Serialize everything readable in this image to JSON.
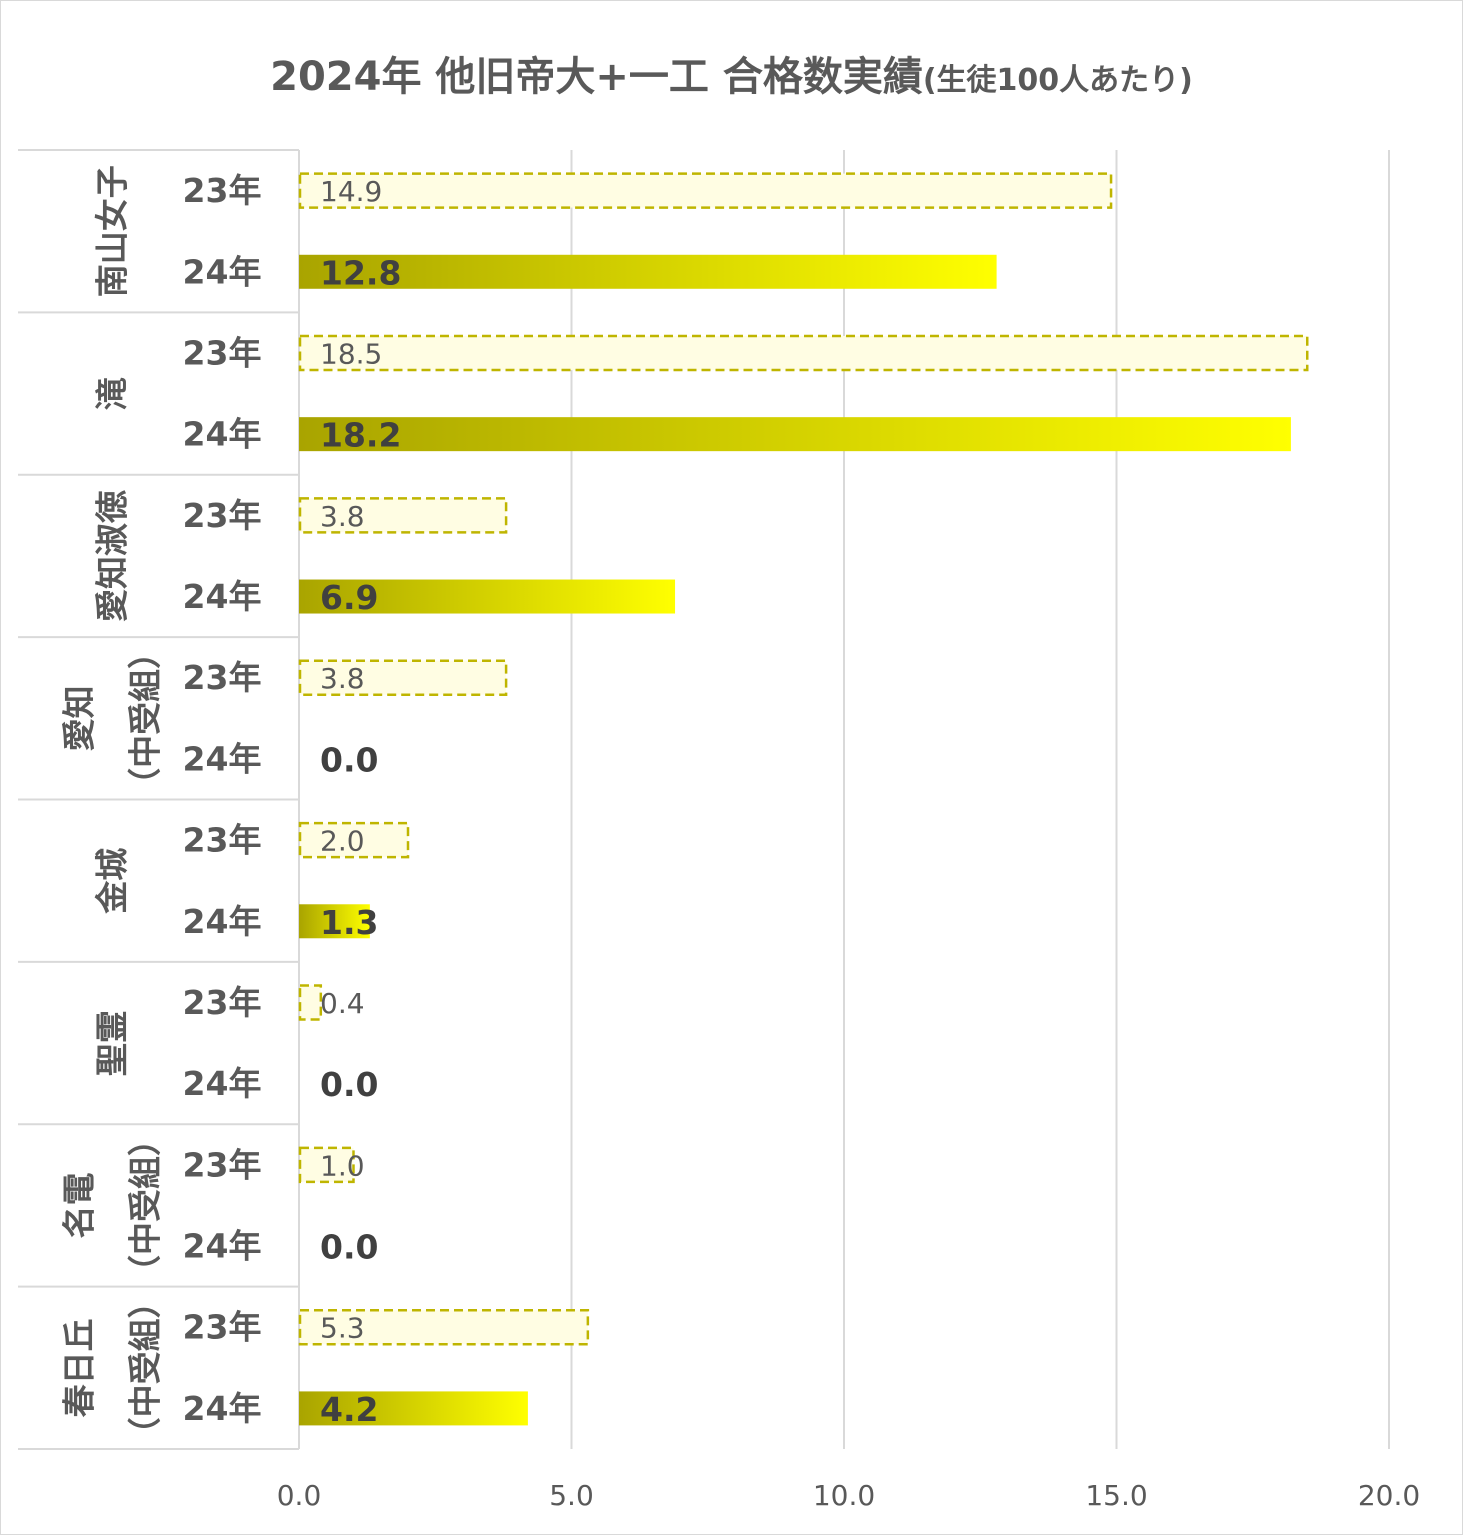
{
  "chart_data": {
    "type": "bar",
    "orientation": "horizontal",
    "title": "2024年 他旧帝大+一工 合格数実績",
    "subtitle": "(生徒100人あたり)",
    "xlim": [
      0,
      20
    ],
    "x_ticks": [
      "0.0",
      "5.0",
      "10.0",
      "15.0",
      "20.0"
    ],
    "grid": true,
    "legend": "none",
    "colors": {
      "bar_23_fill": "#fffde3",
      "bar_23_border": "#bfb500",
      "bar_24_start": "#a9a400",
      "bar_24_end": "#ffff00",
      "grid": "#d9d9d9",
      "axis_text": "#595959",
      "label_text": "#404040"
    },
    "groups": [
      {
        "school": "南山女子",
        "school_lines": [
          "南山女子"
        ],
        "years": [
          "23年",
          "24年"
        ],
        "values": [
          14.9,
          12.8
        ],
        "labels": [
          "14.9",
          "12.8"
        ]
      },
      {
        "school": "滝",
        "school_lines": [
          "滝"
        ],
        "years": [
          "23年",
          "24年"
        ],
        "values": [
          18.5,
          18.2
        ],
        "labels": [
          "18.5",
          "18.2"
        ]
      },
      {
        "school": "愛知淑徳",
        "school_lines": [
          "愛知淑徳"
        ],
        "years": [
          "23年",
          "24年"
        ],
        "values": [
          3.8,
          6.9
        ],
        "labels": [
          "3.8",
          "6.9"
        ]
      },
      {
        "school": "愛知（中受組）",
        "school_lines": [
          "愛知",
          "（中受組）"
        ],
        "years": [
          "23年",
          "24年"
        ],
        "values": [
          3.8,
          0.0
        ],
        "labels": [
          "3.8",
          "0.0"
        ]
      },
      {
        "school": "金城",
        "school_lines": [
          "金城"
        ],
        "years": [
          "23年",
          "24年"
        ],
        "values": [
          2.0,
          1.3
        ],
        "labels": [
          "2.0",
          "1.3"
        ]
      },
      {
        "school": "聖霊",
        "school_lines": [
          "聖霊"
        ],
        "years": [
          "23年",
          "24年"
        ],
        "values": [
          0.4,
          0.0
        ],
        "labels": [
          "0.4",
          "0.0"
        ]
      },
      {
        "school": "名電（中受組）",
        "school_lines": [
          "名電",
          "（中受組）"
        ],
        "years": [
          "23年",
          "24年"
        ],
        "values": [
          1.0,
          0.0
        ],
        "labels": [
          "1.0",
          "0.0"
        ]
      },
      {
        "school": "春日丘（中受組）",
        "school_lines": [
          "春日丘",
          "（中受組）"
        ],
        "years": [
          "23年",
          "24年"
        ],
        "values": [
          5.3,
          4.2
        ],
        "labels": [
          "5.3",
          "4.2"
        ]
      }
    ]
  }
}
